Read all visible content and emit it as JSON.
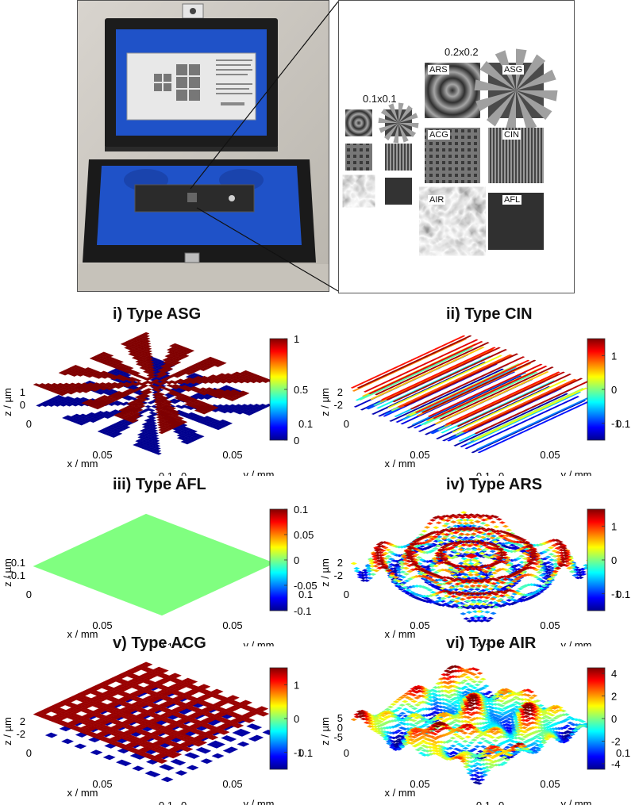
{
  "photo": {
    "zoom": {
      "group_small": "0.1x0.1",
      "group_large": "0.2x0.2",
      "tiles": [
        "ARS",
        "ASG",
        "ACG",
        "CIN",
        "AIR",
        "AFL"
      ]
    }
  },
  "colors": {
    "jet": [
      "#00008f",
      "#0000ff",
      "#00ffff",
      "#80ff80",
      "#ffff00",
      "#ff0000",
      "#800000"
    ],
    "case_blue": "#1e4fc4"
  },
  "chart_data": [
    {
      "id": "i",
      "type": "surface3d",
      "title": "i) Type ASG",
      "pattern": "radial-sectors",
      "xlabel": "x / mm",
      "ylabel": "y / mm",
      "zlabel": "z / µm",
      "xticks": [
        "0",
        "0.05",
        "0.1"
      ],
      "yticks": [
        "0",
        "0.05",
        "0.1"
      ],
      "zticks": [
        "0",
        "1"
      ],
      "colorbar": {
        "min": 0,
        "max": 1,
        "ticks": [
          "1",
          "0.5",
          "0"
        ]
      }
    },
    {
      "id": "ii",
      "type": "surface3d",
      "title": "ii) Type CIN",
      "pattern": "sinusoidal-lines",
      "xlabel": "x / mm",
      "ylabel": "y / mm",
      "zlabel": "z / µm",
      "xticks": [
        "0",
        "0.05",
        "0.1"
      ],
      "yticks": [
        "0",
        "0.05",
        "0.1"
      ],
      "zticks": [
        "-2",
        "2"
      ],
      "colorbar": {
        "min": -1.5,
        "max": 1.5,
        "ticks": [
          "1",
          "0",
          "-1"
        ]
      }
    },
    {
      "id": "iii",
      "type": "surface3d",
      "title": "iii) Type AFL",
      "pattern": "flat",
      "xlabel": "x / mm",
      "ylabel": "y / mm",
      "zlabel": "z / µm",
      "xticks": [
        "0",
        "0.05",
        "0.1"
      ],
      "yticks": [
        "0",
        "0.05",
        "0.1"
      ],
      "zticks": [
        "-0.1",
        "0.1"
      ],
      "colorbar": {
        "min": -0.1,
        "max": 0.1,
        "ticks": [
          "0.1",
          "0.05",
          "0",
          "-0.05",
          "-0.1"
        ]
      }
    },
    {
      "id": "iv",
      "type": "surface3d",
      "title": "iv) Type ARS",
      "pattern": "radial-sine",
      "xlabel": "x / mm",
      "ylabel": "y / mm",
      "zlabel": "z / µm",
      "xticks": [
        "0",
        "0.05",
        "0.1"
      ],
      "yticks": [
        "0",
        "0.05",
        "0.1"
      ],
      "zticks": [
        "-2",
        "2"
      ],
      "colorbar": {
        "min": -1.5,
        "max": 1.5,
        "ticks": [
          "1",
          "0",
          "-1"
        ]
      }
    },
    {
      "id": "v",
      "type": "surface3d",
      "title": "v) Type ACG",
      "pattern": "cross-grating",
      "xlabel": "x / mm",
      "ylabel": "y / mm",
      "zlabel": "z / µm",
      "xticks": [
        "0",
        "0.05",
        "0.1"
      ],
      "yticks": [
        "0",
        "0.05",
        "0.1"
      ],
      "zticks": [
        "-2",
        "2"
      ],
      "colorbar": {
        "min": -1.5,
        "max": 1.5,
        "ticks": [
          "1",
          "0",
          "-1"
        ]
      }
    },
    {
      "id": "vi",
      "type": "surface3d",
      "title": "vi) Type AIR",
      "pattern": "irregular",
      "xlabel": "x / mm",
      "ylabel": "y / mm",
      "zlabel": "z / µm",
      "xticks": [
        "0",
        "0.05",
        "0.1"
      ],
      "yticks": [
        "0",
        "0.05",
        "0.1"
      ],
      "zticks": [
        "-5",
        "0",
        "5"
      ],
      "colorbar": {
        "min": -4.5,
        "max": 4.5,
        "ticks": [
          "4",
          "2",
          "0",
          "-2",
          "-4"
        ]
      }
    }
  ]
}
